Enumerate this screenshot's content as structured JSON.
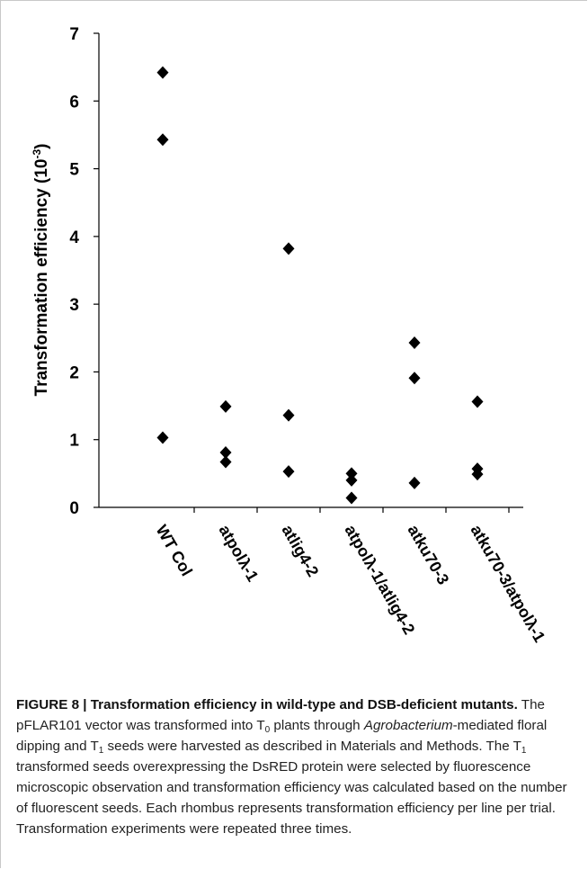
{
  "chart_data": {
    "type": "scatter",
    "title": "",
    "xlabel": "",
    "ylabel": "Transformation efficiency (10",
    "ylabel_sup": "-3",
    "ylabel_close": ")",
    "ylim": [
      0,
      7
    ],
    "yticks": [
      0,
      1,
      2,
      3,
      4,
      5,
      6,
      7
    ],
    "categories": [
      "WT Col",
      "atpolλ-1",
      "atlig4-2",
      "atpolλ-1/atlig4-2",
      "atku70-3",
      "atku70-3/atpolλ-1"
    ],
    "points": [
      {
        "category": "WT Col",
        "values": [
          6.42,
          5.43,
          1.03
        ]
      },
      {
        "category": "atpolλ-1",
        "values": [
          1.49,
          0.81,
          0.67
        ]
      },
      {
        "category": "atlig4-2",
        "values": [
          3.82,
          1.36,
          0.53
        ]
      },
      {
        "category": "atpolλ-1/atlig4-2",
        "values": [
          0.5,
          0.4,
          0.14
        ]
      },
      {
        "category": "atku70-3",
        "values": [
          2.43,
          1.91,
          0.36
        ]
      },
      {
        "category": "atku70-3/atpolλ-1",
        "values": [
          1.56,
          0.57,
          0.49
        ]
      }
    ],
    "marker": "diamond",
    "marker_color": "#000000",
    "grid": false
  },
  "caption": {
    "label": "FIGURE 8 | Transformation efficiency in wild-type and DSB-deficient mutants.",
    "t1": " The pFLAR101 vector was transformed into T",
    "s1": "0",
    "t2": " plants through ",
    "i1": "Agrobacterium",
    "t3": "-mediated floral dipping and T",
    "s2": "1",
    "t4": " seeds were harvested as described in Materials and Methods. The T",
    "s3": "1",
    "t5": " transformed seeds overexpressing the DsRED protein were selected by fluorescence microscopic observation and transformation efficiency was calculated based on the number of fluorescent seeds. Each rhombus represents transformation efficiency per line per trial. Transformation experiments were repeated three times."
  }
}
